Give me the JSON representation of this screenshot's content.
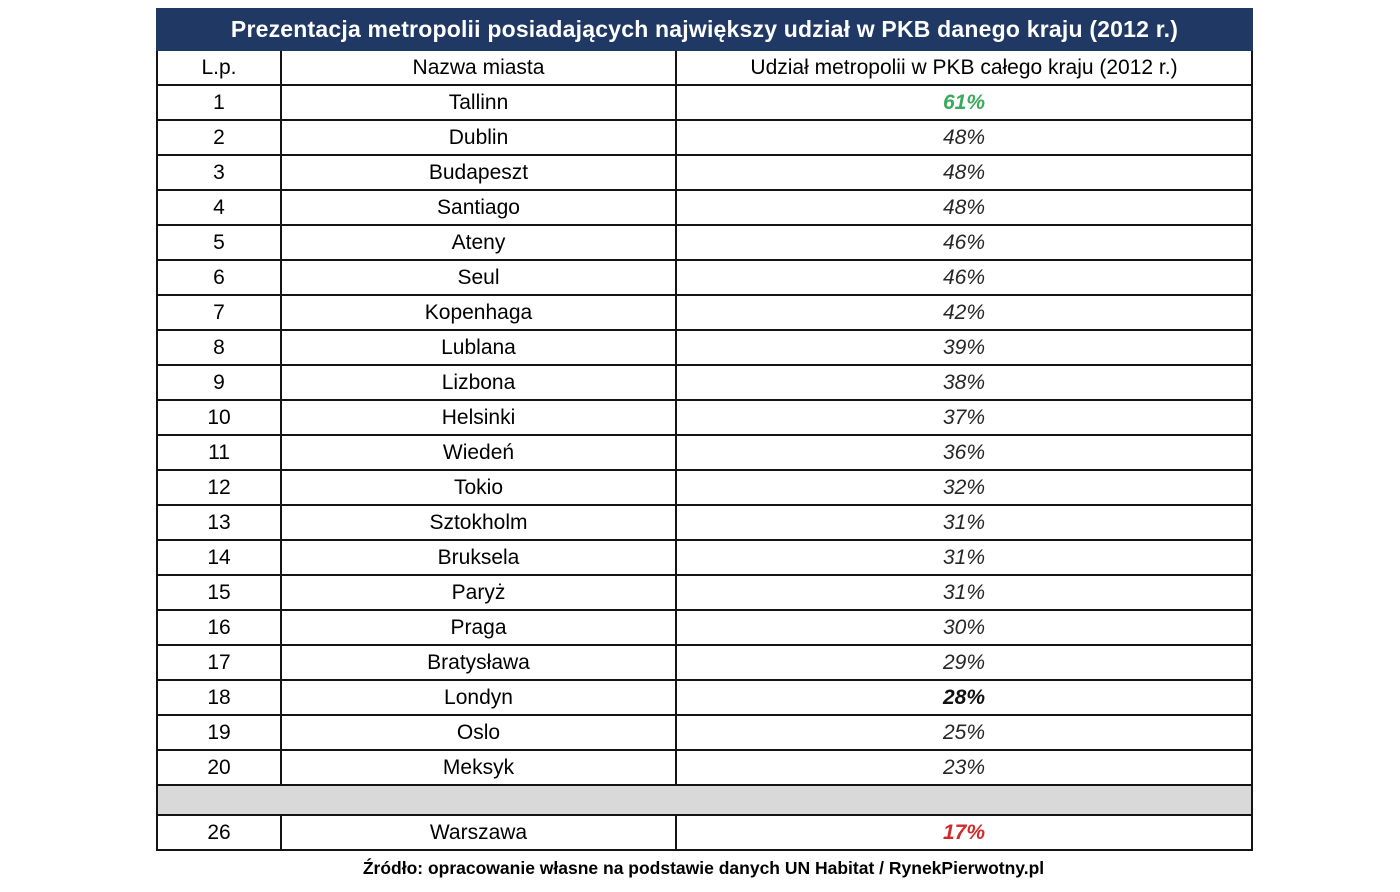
{
  "chart_data": {
    "type": "table",
    "title": "Prezentacja metropolii posiadających największy udział w PKB danego kraju (2012 r.)",
    "columns": [
      "L.p.",
      "Nazwa miasta",
      "Udział metropolii w PKB całego kraju (2012 r.)"
    ],
    "rows": [
      {
        "lp": 1,
        "city": "Tallinn",
        "value_pct": 61,
        "value_label": "61%",
        "value_style": "green"
      },
      {
        "lp": 2,
        "city": "Dublin",
        "value_pct": 48,
        "value_label": "48%"
      },
      {
        "lp": 3,
        "city": "Budapeszt",
        "value_pct": 48,
        "value_label": "48%"
      },
      {
        "lp": 4,
        "city": "Santiago",
        "value_pct": 48,
        "value_label": "48%"
      },
      {
        "lp": 5,
        "city": "Ateny",
        "value_pct": 46,
        "value_label": "46%"
      },
      {
        "lp": 6,
        "city": "Seul",
        "value_pct": 46,
        "value_label": "46%"
      },
      {
        "lp": 7,
        "city": "Kopenhaga",
        "value_pct": 42,
        "value_label": "42%"
      },
      {
        "lp": 8,
        "city": "Lublana",
        "value_pct": 39,
        "value_label": "39%"
      },
      {
        "lp": 9,
        "city": "Lizbona",
        "value_pct": 38,
        "value_label": "38%"
      },
      {
        "lp": 10,
        "city": "Helsinki",
        "value_pct": 37,
        "value_label": "37%"
      },
      {
        "lp": 11,
        "city": "Wiedeń",
        "value_pct": 36,
        "value_label": "36%"
      },
      {
        "lp": 12,
        "city": "Tokio",
        "value_pct": 32,
        "value_label": "32%"
      },
      {
        "lp": 13,
        "city": "Sztokholm",
        "value_pct": 31,
        "value_label": "31%"
      },
      {
        "lp": 14,
        "city": "Bruksela",
        "value_pct": 31,
        "value_label": "31%"
      },
      {
        "lp": 15,
        "city": "Paryż",
        "value_pct": 31,
        "value_label": "31%"
      },
      {
        "lp": 16,
        "city": "Praga",
        "value_pct": 30,
        "value_label": "30%"
      },
      {
        "lp": 17,
        "city": "Bratysława",
        "value_pct": 29,
        "value_label": "29%"
      },
      {
        "lp": 18,
        "city": "Londyn",
        "value_pct": 28,
        "value_label": "28%",
        "value_style": "bold"
      },
      {
        "lp": 19,
        "city": "Oslo",
        "value_pct": 25,
        "value_label": "25%"
      },
      {
        "lp": 20,
        "city": "Meksyk",
        "value_pct": 23,
        "value_label": "23%"
      },
      {
        "lp": 26,
        "city": "Warszawa",
        "value_pct": 17,
        "value_label": "17%",
        "value_style": "red",
        "separator_before": true
      }
    ],
    "source": "Źródło: opracowanie własne na podstawie danych UN Habitat / RynekPierwotny.pl"
  },
  "colors": {
    "header_bg": "#1f3864",
    "green": "#3aab5c",
    "red": "#cf2b2b",
    "separator_bg": "#d9d9d9",
    "border": "#141414",
    "value_text": "#262626"
  }
}
